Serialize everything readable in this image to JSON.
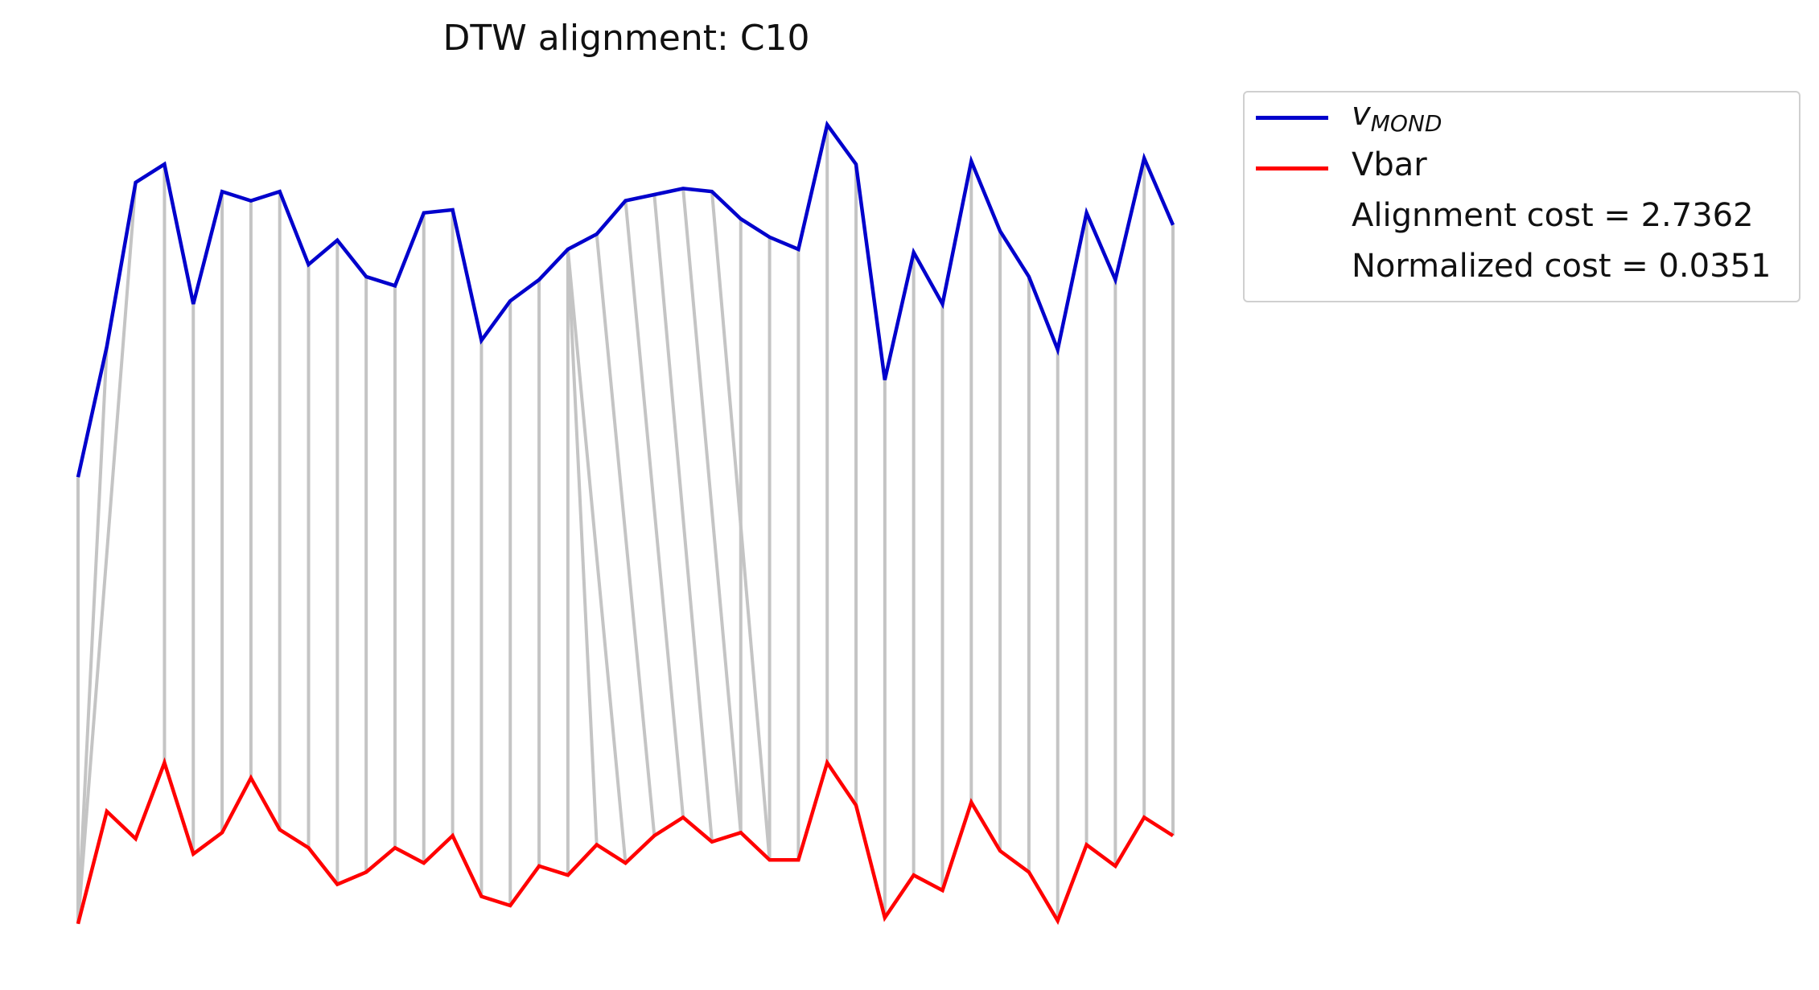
{
  "chart_data": {
    "type": "line",
    "title": "DTW alignment: C10",
    "x": [
      0,
      1,
      2,
      3,
      4,
      5,
      6,
      7,
      8,
      9,
      10,
      11,
      12,
      13,
      14,
      15,
      16,
      17,
      18,
      19,
      20,
      21,
      22,
      23,
      24,
      25,
      26,
      27,
      28,
      29,
      30,
      31,
      32,
      33,
      34,
      35,
      36,
      37,
      38
    ],
    "series": [
      {
        "name": "v_MOND",
        "display_main": "v",
        "display_sub": "MOND",
        "color": "#0000cc",
        "values": [
          -0.01,
          0.033,
          0.087,
          0.093,
          0.047,
          0.084,
          0.081,
          0.084,
          0.06,
          0.068,
          0.056,
          0.053,
          0.077,
          0.078,
          0.035,
          0.048,
          0.055,
          0.065,
          0.07,
          0.081,
          0.083,
          0.085,
          0.084,
          0.075,
          0.069,
          0.065,
          0.106,
          0.093,
          0.022,
          0.064,
          0.047,
          0.094,
          0.071,
          0.056,
          0.032,
          0.077,
          0.055,
          0.095,
          0.073
        ]
      },
      {
        "name": "Vbar",
        "color": "#ff0000",
        "values": [
          -0.157,
          -0.12,
          -0.129,
          -0.104,
          -0.134,
          -0.127,
          -0.109,
          -0.126,
          -0.132,
          -0.144,
          -0.14,
          -0.132,
          -0.137,
          -0.128,
          -0.148,
          -0.151,
          -0.138,
          -0.141,
          -0.131,
          -0.137,
          -0.128,
          -0.122,
          -0.13,
          -0.127,
          -0.136,
          -0.136,
          -0.104,
          -0.118,
          -0.155,
          -0.141,
          -0.146,
          -0.117,
          -0.133,
          -0.14,
          -0.156,
          -0.131,
          -0.138,
          -0.122,
          -0.128
        ]
      }
    ],
    "alignment_path": [
      [
        0,
        0
      ],
      [
        1,
        0
      ],
      [
        2,
        0
      ],
      [
        3,
        3
      ],
      [
        4,
        4
      ],
      [
        5,
        5
      ],
      [
        6,
        6
      ],
      [
        7,
        7
      ],
      [
        8,
        8
      ],
      [
        9,
        9
      ],
      [
        10,
        10
      ],
      [
        11,
        11
      ],
      [
        12,
        12
      ],
      [
        13,
        13
      ],
      [
        14,
        14
      ],
      [
        15,
        15
      ],
      [
        16,
        16
      ],
      [
        17,
        17
      ],
      [
        17,
        18
      ],
      [
        17,
        19
      ],
      [
        18,
        20
      ],
      [
        19,
        21
      ],
      [
        20,
        22
      ],
      [
        21,
        23
      ],
      [
        22,
        24
      ],
      [
        23,
        23
      ],
      [
        24,
        24
      ],
      [
        25,
        25
      ],
      [
        26,
        26
      ],
      [
        27,
        27
      ],
      [
        28,
        28
      ],
      [
        29,
        29
      ],
      [
        30,
        30
      ],
      [
        31,
        31
      ],
      [
        32,
        32
      ],
      [
        33,
        33
      ],
      [
        34,
        34
      ],
      [
        35,
        35
      ],
      [
        36,
        36
      ],
      [
        37,
        37
      ],
      [
        38,
        38
      ]
    ],
    "ylim": [
      -0.16,
      0.11
    ],
    "xlim": [
      0,
      38
    ],
    "axes_visible": false,
    "grid": false,
    "legend_placement": "outside upper right",
    "legend": {
      "cost_label": "Alignment cost = 2.7362",
      "normalized_label": "Normalized cost = 0.0351"
    },
    "connector_color": "#c4c4c4"
  }
}
